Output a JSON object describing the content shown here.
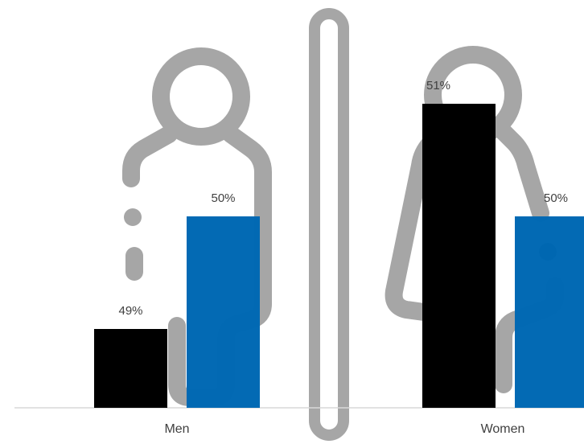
{
  "chart_data": {
    "type": "bar",
    "categories": [
      "Men",
      "Women"
    ],
    "series": [
      {
        "values": [
          49,
          51
        ],
        "labels": [
          "49%",
          "51%"
        ],
        "color": "#000000"
      },
      {
        "values": [
          50,
          50
        ],
        "labels": [
          "50%",
          "50%"
        ],
        "color": "#0068b3"
      }
    ],
    "axis_line_color": "#d9d9d9",
    "grid": false,
    "background_illustration": {
      "icons": [
        "man-figure-icon",
        "divider-bar-icon",
        "woman-figure-icon"
      ],
      "color": "#a6a6a6"
    }
  }
}
